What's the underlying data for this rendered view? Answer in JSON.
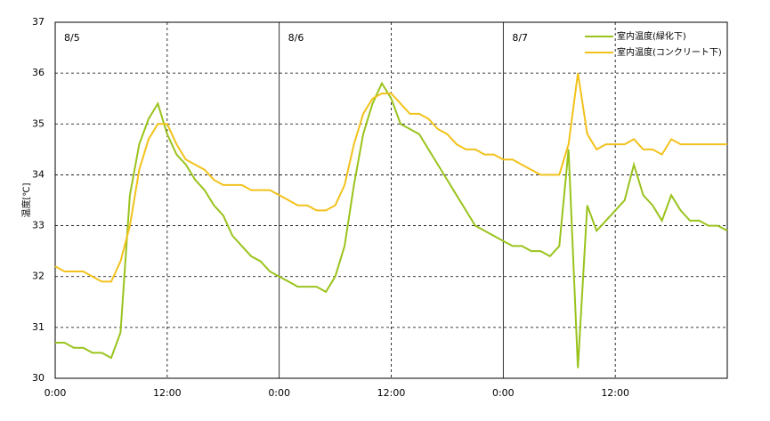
{
  "chart_data": {
    "type": "line",
    "y_label": "温度[℃]",
    "x": [
      0,
      1,
      2,
      3,
      4,
      5,
      6,
      7,
      8,
      9,
      10,
      11,
      12,
      13,
      14,
      15,
      16,
      17,
      18,
      19,
      20,
      21,
      22,
      23,
      24,
      25,
      26,
      27,
      28,
      29,
      30,
      31,
      32,
      33,
      34,
      35,
      36,
      37,
      38,
      39,
      40,
      41,
      42,
      43,
      44,
      45,
      46,
      47,
      48,
      49,
      50,
      51,
      52,
      53,
      54,
      55,
      56,
      57,
      58,
      59,
      60,
      61,
      62,
      63,
      64,
      65,
      66,
      67,
      68,
      69,
      70,
      71,
      72
    ],
    "xlim": [
      0,
      72
    ],
    "xticks": [
      {
        "value": 0,
        "label": "0:00"
      },
      {
        "value": 12,
        "label": "12:00"
      },
      {
        "value": 24,
        "label": "0:00"
      },
      {
        "value": 36,
        "label": "12:00"
      },
      {
        "value": 48,
        "label": "0:00"
      },
      {
        "value": 60,
        "label": "12:00"
      }
    ],
    "ylim": [
      30,
      37
    ],
    "yticks": [
      30,
      31,
      32,
      33,
      34,
      35,
      36,
      37
    ],
    "grid": true,
    "legend": "upper right",
    "annotations": [
      {
        "text": "8/5",
        "x": 0
      },
      {
        "text": "8/6",
        "x": 24
      },
      {
        "text": "8/7",
        "x": 48
      }
    ],
    "series": [
      {
        "name": "室内温度(緑化下)",
        "color": "#9ac31c",
        "values": [
          30.7,
          30.7,
          30.6,
          30.6,
          30.5,
          30.5,
          30.4,
          30.9,
          33.6,
          34.6,
          35.1,
          35.4,
          34.8,
          34.4,
          34.2,
          33.9,
          33.7,
          33.4,
          33.2,
          32.8,
          32.6,
          32.4,
          32.3,
          32.1,
          32.0,
          31.9,
          31.8,
          31.8,
          31.8,
          31.7,
          32.0,
          32.6,
          33.8,
          34.8,
          35.4,
          35.8,
          35.5,
          35.0,
          34.9,
          34.8,
          34.5,
          34.2,
          33.9,
          33.6,
          33.3,
          33.0,
          32.9,
          32.8,
          32.7,
          32.6,
          32.6,
          32.5,
          32.5,
          32.4,
          32.6,
          34.5,
          30.2,
          33.4,
          32.9,
          33.1,
          33.3,
          33.5,
          34.2,
          33.6,
          33.4,
          33.1,
          33.6,
          33.3,
          33.1,
          33.1,
          33.0,
          33.0,
          32.9
        ]
      },
      {
        "name": "室内温度(コンクリート下)",
        "color": "#f2c21b",
        "values": [
          32.2,
          32.1,
          32.1,
          32.1,
          32.0,
          31.9,
          31.9,
          32.3,
          33.0,
          34.1,
          34.7,
          35.0,
          35.0,
          34.6,
          34.3,
          34.2,
          34.1,
          33.9,
          33.8,
          33.8,
          33.8,
          33.7,
          33.7,
          33.7,
          33.6,
          33.5,
          33.4,
          33.4,
          33.3,
          33.3,
          33.4,
          33.8,
          34.6,
          35.2,
          35.5,
          35.6,
          35.6,
          35.4,
          35.2,
          35.2,
          35.1,
          34.9,
          34.8,
          34.6,
          34.5,
          34.5,
          34.4,
          34.4,
          34.3,
          34.3,
          34.2,
          34.1,
          34.0,
          34.0,
          34.0,
          34.6,
          36.0,
          34.8,
          34.5,
          34.6,
          34.6,
          34.6,
          34.7,
          34.5,
          34.5,
          34.4,
          34.7,
          34.6,
          34.6,
          34.6,
          34.6,
          34.6,
          34.6
        ]
      }
    ]
  }
}
